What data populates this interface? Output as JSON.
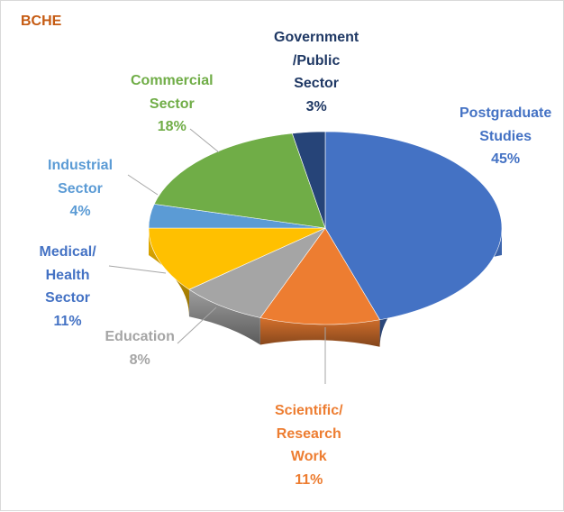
{
  "chart_data": {
    "type": "pie",
    "title": "BCHE",
    "categories": [
      "Postgraduate Studies",
      "Scientific/ Research Work",
      "Education",
      "Medical/ Health Sector",
      "Industrial Sector",
      "Commercial Sector",
      "Government /Public Sector"
    ],
    "values": [
      45,
      11,
      8,
      11,
      4,
      18,
      3
    ],
    "value_labels": [
      "45%",
      "11%",
      "8%",
      "11%",
      "4%",
      "18%",
      "3%"
    ],
    "label_lines": [
      [
        "Postgraduate",
        "Studies"
      ],
      [
        "Scientific/",
        "Research",
        "Work"
      ],
      [
        "Education"
      ],
      [
        "Medical/",
        "Health",
        "Sector"
      ],
      [
        "Industrial",
        "Sector"
      ],
      [
        "Commercial",
        "Sector"
      ],
      [
        "Government",
        "/Public",
        "Sector"
      ]
    ],
    "colors": [
      "#4472c4",
      "#ed7d31",
      "#a5a5a5",
      "#ffc000",
      "#5b9bd5",
      "#70ad47",
      "#264478"
    ],
    "label_colors": [
      "#4472c4",
      "#ed7d31",
      "#a5a5a5",
      "#4472c4",
      "#5b9bd5",
      "#70ad47",
      "#1f3864"
    ],
    "legend": "none",
    "style": "3d"
  }
}
